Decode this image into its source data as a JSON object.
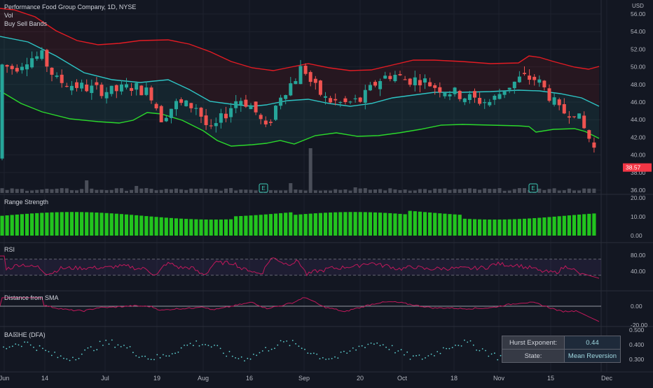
{
  "header": {
    "symbol_title": "Performance Food Group Company, 1D, NYSE",
    "vol_label": "Vol",
    "indicator_label": "Buy Sell Bands"
  },
  "panes": {
    "range_strength": {
      "label": "Range Strength",
      "ticks": [
        "20.00",
        "10.00",
        "0.00"
      ]
    },
    "rsi": {
      "label": "RSI",
      "ticks": [
        "80.00",
        "40.00"
      ]
    },
    "distance_sma": {
      "label": "Distance from SMA",
      "ticks": [
        "0.00",
        "-20.00"
      ]
    },
    "hurst": {
      "label": "BA☒HE (DFA)",
      "ticks": [
        "0.500",
        "0.400",
        "0.300"
      ]
    }
  },
  "price_axis": {
    "currency": "USD",
    "ticks": [
      "56.00",
      "54.00",
      "52.00",
      "50.00",
      "48.00",
      "46.00",
      "44.00",
      "42.00",
      "40.00",
      "38.00",
      "36.00"
    ],
    "last_price": "38.57",
    "last_price_color": "#f23645"
  },
  "time_axis": {
    "labels": [
      "Jun",
      "14",
      "Jul",
      "19",
      "Aug",
      "16",
      "Sep",
      "20",
      "Oct",
      "18",
      "Nov",
      "15",
      "Dec"
    ]
  },
  "earnings_markers": [
    "E",
    "E"
  ],
  "hurst_table": {
    "rows": [
      {
        "key": "Hurst Exponent:",
        "value": "0.44"
      },
      {
        "key": "State:",
        "value": "Mean Reversion"
      }
    ]
  },
  "colors": {
    "up": "#26a69a",
    "down": "#ef5350",
    "upper_band": "#e31b23",
    "mid_band": "#2ec4c4",
    "lower_band": "#2bd92b",
    "range_bar": "#22c41e",
    "rsi_line": "#c2185b",
    "sma_line": "#c2185b",
    "hurst_dot": "#5fd3d3"
  }
}
